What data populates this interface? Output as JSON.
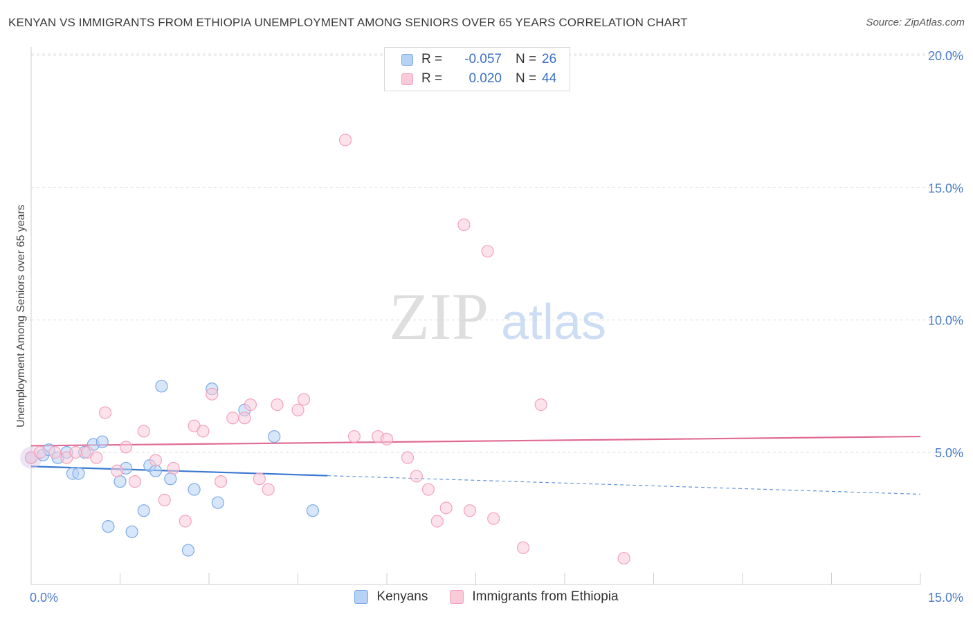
{
  "header": {
    "title": "KENYAN VS IMMIGRANTS FROM ETHIOPIA UNEMPLOYMENT AMONG SENIORS OVER 65 YEARS CORRELATION CHART",
    "source": "Source: ZipAtlas.com"
  },
  "watermark": {
    "zip": "ZIP",
    "atlas": "atlas"
  },
  "legend": {
    "r_label": "R =",
    "n_label": "N =",
    "series": [
      {
        "r": "-0.057",
        "n": "26"
      },
      {
        "r": "0.020",
        "n": "44"
      }
    ]
  },
  "chart_data": {
    "type": "scatter",
    "title": "KENYAN VS IMMIGRANTS FROM ETHIOPIA UNEMPLOYMENT AMONG SENIORS OVER 65 YEARS CORRELATION CHART",
    "xlabel": "",
    "ylabel": "Unemployment Among Seniors over 65 years",
    "xlim": [
      0,
      15
    ],
    "ylim": [
      0,
      20
    ],
    "x_tick_labels": [
      "0.0%",
      "15.0%"
    ],
    "y_ticks": [
      {
        "value": 5,
        "label": "5.0%"
      },
      {
        "value": 10,
        "label": "10.0%"
      },
      {
        "value": 15,
        "label": "15.0%"
      },
      {
        "value": 20,
        "label": "20.0%"
      }
    ],
    "colors": {
      "kenyans": "#7aaae8",
      "ethiopia": "#f2a3bd",
      "kenyans_line": "#3a78d0",
      "ethiopia_line": "#e06a93"
    },
    "series": [
      {
        "name": "Kenyans",
        "points": [
          [
            0.0,
            4.8
          ],
          [
            0.2,
            4.9
          ],
          [
            0.3,
            5.1
          ],
          [
            0.45,
            4.8
          ],
          [
            0.6,
            5.0
          ],
          [
            0.7,
            4.2
          ],
          [
            0.8,
            4.2
          ],
          [
            0.9,
            5.0
          ],
          [
            1.05,
            5.3
          ],
          [
            1.2,
            5.4
          ],
          [
            1.3,
            2.2
          ],
          [
            1.5,
            3.9
          ],
          [
            1.6,
            4.4
          ],
          [
            1.7,
            2.0
          ],
          [
            1.9,
            2.8
          ],
          [
            2.0,
            4.5
          ],
          [
            2.1,
            4.3
          ],
          [
            2.2,
            7.5
          ],
          [
            2.35,
            4.0
          ],
          [
            2.65,
            1.3
          ],
          [
            2.75,
            3.6
          ],
          [
            3.05,
            7.4
          ],
          [
            3.15,
            3.1
          ],
          [
            3.6,
            6.6
          ],
          [
            4.1,
            5.6
          ],
          [
            4.75,
            2.8
          ]
        ],
        "trend": {
          "x0": 0.0,
          "y0": 4.47,
          "x1": 5.0,
          "y1": 4.12,
          "dash_to_x": 15.0,
          "dash_to_y": 3.42
        }
      },
      {
        "name": "Immigrants from Ethiopia",
        "points": [
          [
            0.0,
            4.8
          ],
          [
            0.15,
            5.0
          ],
          [
            0.4,
            5.0
          ],
          [
            0.6,
            4.8
          ],
          [
            0.75,
            5.0
          ],
          [
            0.95,
            5.0
          ],
          [
            1.1,
            4.8
          ],
          [
            1.25,
            6.5
          ],
          [
            1.45,
            4.3
          ],
          [
            1.6,
            5.2
          ],
          [
            1.75,
            3.9
          ],
          [
            1.9,
            5.8
          ],
          [
            2.1,
            4.7
          ],
          [
            2.25,
            3.2
          ],
          [
            2.4,
            4.4
          ],
          [
            2.6,
            2.4
          ],
          [
            2.75,
            6.0
          ],
          [
            2.9,
            5.8
          ],
          [
            3.05,
            7.2
          ],
          [
            3.2,
            3.9
          ],
          [
            3.4,
            6.3
          ],
          [
            3.6,
            6.3
          ],
          [
            3.7,
            6.8
          ],
          [
            3.85,
            4.0
          ],
          [
            4.0,
            3.6
          ],
          [
            4.15,
            6.8
          ],
          [
            4.5,
            6.6
          ],
          [
            4.6,
            7.0
          ],
          [
            5.3,
            16.8
          ],
          [
            5.45,
            5.6
          ],
          [
            5.85,
            5.6
          ],
          [
            6.0,
            5.5
          ],
          [
            6.35,
            4.8
          ],
          [
            6.5,
            4.1
          ],
          [
            6.7,
            3.6
          ],
          [
            6.85,
            2.4
          ],
          [
            7.0,
            2.9
          ],
          [
            7.3,
            13.6
          ],
          [
            7.4,
            2.8
          ],
          [
            7.7,
            12.6
          ],
          [
            7.8,
            2.5
          ],
          [
            8.3,
            1.4
          ],
          [
            8.6,
            6.8
          ],
          [
            10.0,
            1.0
          ]
        ],
        "trend": {
          "x0": 0.0,
          "y0": 5.25,
          "x1": 15.0,
          "y1": 5.6
        }
      }
    ],
    "legend_position": "top-center",
    "grid": true
  },
  "bottom_legend": {
    "items": [
      {
        "label": "Kenyans"
      },
      {
        "label": "Immigrants from Ethiopia"
      }
    ]
  }
}
